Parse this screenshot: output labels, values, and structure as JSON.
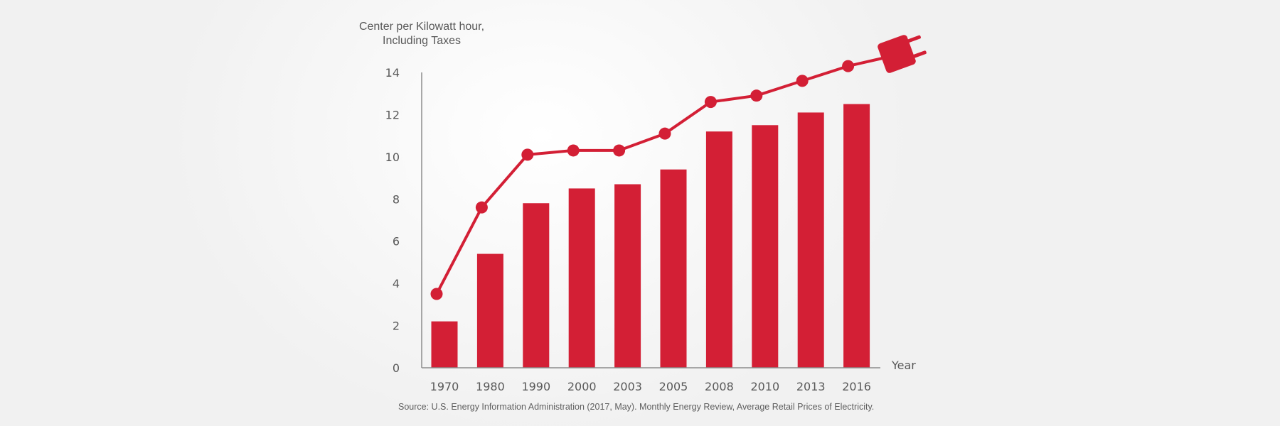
{
  "chart_data": {
    "type": "bar",
    "title": "",
    "ylabel_line1": "Center per Kilowatt hour,",
    "ylabel_line2": "Including Taxes",
    "xlabel": "Year",
    "categories": [
      "1970",
      "1980",
      "1990",
      "2000",
      "2003",
      "2005",
      "2008",
      "2010",
      "2013",
      "2016"
    ],
    "series": [
      {
        "name": "bars",
        "type": "bar",
        "values": [
          2.2,
          5.4,
          7.8,
          8.5,
          8.7,
          9.4,
          11.2,
          11.5,
          12.1,
          12.5
        ]
      },
      {
        "name": "line",
        "type": "line",
        "values": [
          3.5,
          7.6,
          10.1,
          10.3,
          10.3,
          11.1,
          12.6,
          12.9,
          13.6,
          14.3
        ]
      }
    ],
    "yticks": [
      "0",
      "2",
      "4",
      "6",
      "8",
      "10",
      "12",
      "14"
    ],
    "ylim": [
      0,
      14
    ],
    "grid": false,
    "source": "Source: U.S. Energy Information Administration (2017, May). Monthly Energy Review, Average Retail Prices of Electricity.",
    "colors": {
      "accent": "#d31f35",
      "axis": "#8c8c8c",
      "text": "#595959"
    }
  }
}
